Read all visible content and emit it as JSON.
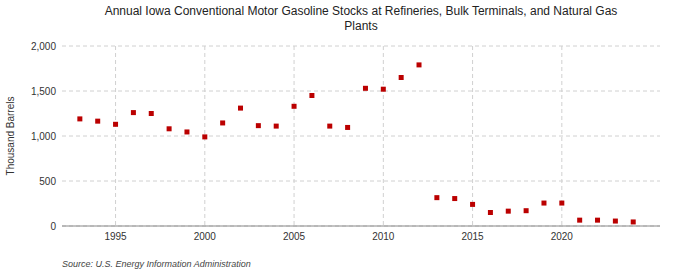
{
  "chart_data": {
    "type": "scatter",
    "title": "Annual Iowa Conventional Motor Gasoline Stocks at Refineries, Bulk Terminals, and Natural Gas\nPlants",
    "ylabel": "Thousand Barrels",
    "source": "Source: U.S. Energy Information Administration",
    "x": [
      1993,
      1994,
      1995,
      1996,
      1997,
      1998,
      1999,
      2000,
      2001,
      2002,
      2003,
      2004,
      2005,
      2006,
      2007,
      2008,
      2009,
      2010,
      2011,
      2012,
      2013,
      2014,
      2015,
      2016,
      2017,
      2018,
      2019,
      2020,
      2021,
      2022,
      2023,
      2024
    ],
    "values": [
      1190,
      1165,
      1130,
      1260,
      1250,
      1080,
      1045,
      990,
      1145,
      1310,
      1115,
      1110,
      1330,
      1450,
      1110,
      1095,
      1530,
      1520,
      1650,
      1790,
      315,
      305,
      240,
      150,
      165,
      170,
      255,
      255,
      65,
      65,
      55,
      45
    ],
    "color": "#bb0000",
    "marker": "square",
    "xlim": [
      1992.0,
      2025.5
    ],
    "xticks": [
      1995,
      2000,
      2005,
      2010,
      2015,
      2020
    ],
    "ylim": [
      0,
      2000
    ],
    "yticks": [
      0,
      500,
      {
        "value": 1000,
        "label": "1,000"
      },
      {
        "value": 1500,
        "label": "1,500"
      },
      {
        "value": 2000,
        "label": "2,000"
      }
    ],
    "grid": true
  }
}
